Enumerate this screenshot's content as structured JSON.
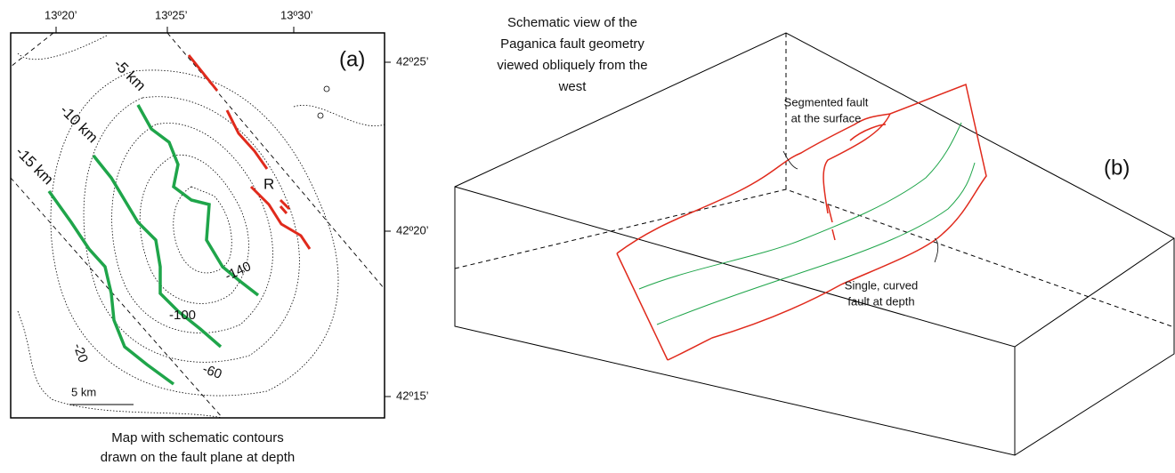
{
  "map": {
    "lon_labels": [
      "13º20’",
      "13º25’",
      "13º30’"
    ],
    "lat_labels": [
      "42º25’",
      "42º20’",
      "42º15’"
    ],
    "panel": "(a)",
    "depth_labels": [
      "-5 km",
      "-10 km",
      "-15 km"
    ],
    "site": "R",
    "contour_labels": [
      "-140",
      "-100",
      "-60",
      "-20"
    ],
    "scale": "5 km",
    "caption": [
      "Map with schematic contours",
      "drawn on the fault plane at depth"
    ]
  },
  "block": {
    "title": [
      "Schematic view of the",
      "Paganica fault geometry",
      "viewed obliquely from the",
      "west"
    ],
    "panel": "(b)",
    "surface_note": [
      "Segmented fault",
      "at the surface"
    ],
    "depth_note": [
      "Single, curved",
      "fault at depth"
    ]
  }
}
